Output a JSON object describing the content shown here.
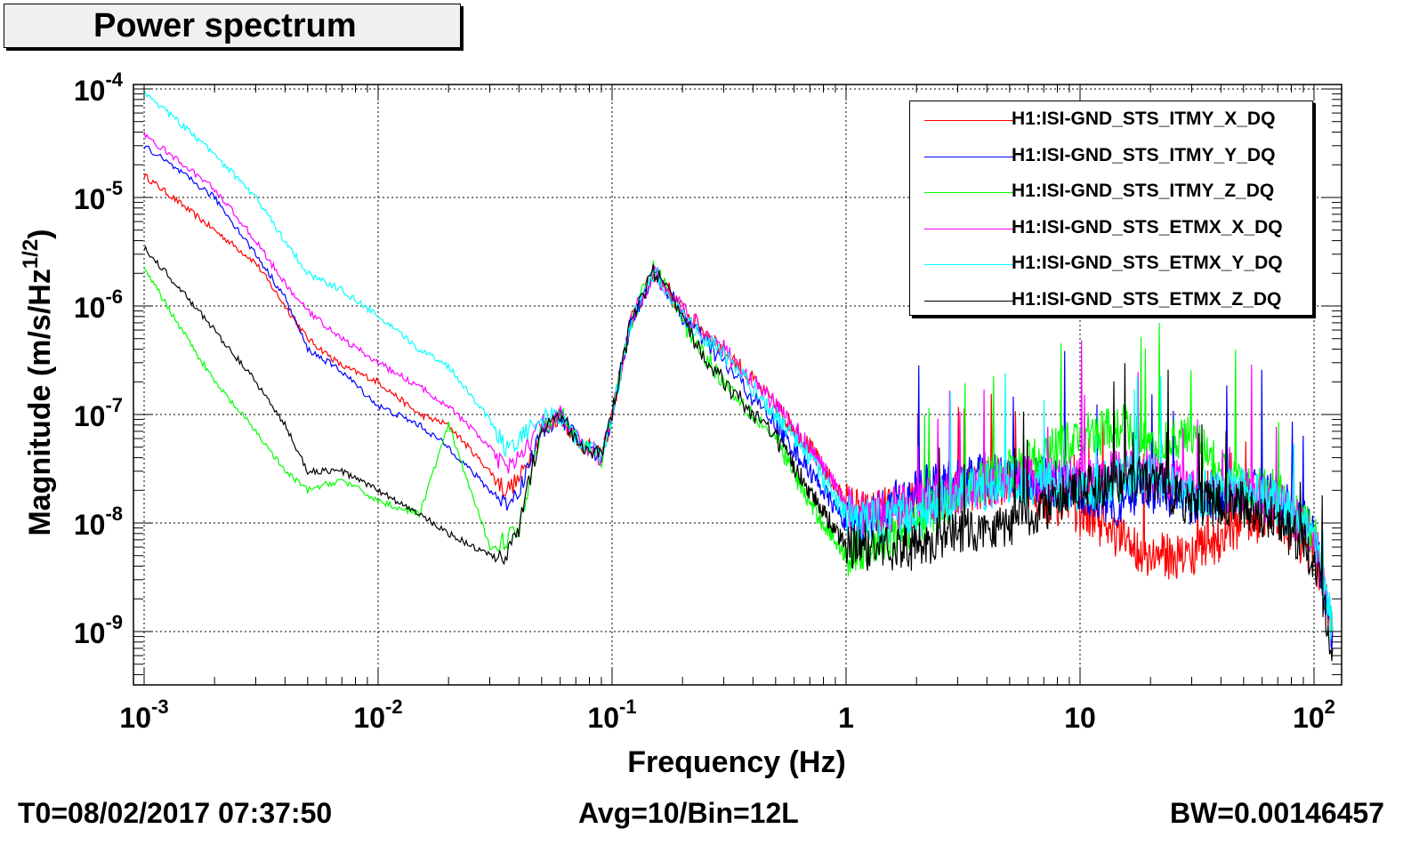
{
  "chart_data": {
    "type": "line",
    "title": "Power spectrum",
    "xlabel": "Frequency (Hz)",
    "ylabel": "Magnitude (m/s/Hz^(1/2))",
    "xscale": "log",
    "yscale": "log",
    "xlim": [
      0.001,
      120
    ],
    "ylim": [
      3e-10,
      0.0001
    ],
    "grid": true,
    "legend_position": "top-right",
    "x_ticks": [
      {
        "base": "10",
        "exp": "-3",
        "value": 0.001
      },
      {
        "base": "10",
        "exp": "-2",
        "value": 0.01
      },
      {
        "base": "10",
        "exp": "-1",
        "value": 0.1
      },
      {
        "base": "1",
        "exp": "",
        "value": 1
      },
      {
        "base": "10",
        "exp": "",
        "value": 10
      },
      {
        "base": "10",
        "exp": "2",
        "value": 100
      }
    ],
    "y_ticks": [
      {
        "base": "10",
        "exp": "-4",
        "value": 0.0001
      },
      {
        "base": "10",
        "exp": "-5",
        "value": 1e-05
      },
      {
        "base": "10",
        "exp": "-6",
        "value": 1e-06
      },
      {
        "base": "10",
        "exp": "-7",
        "value": 1e-07
      },
      {
        "base": "10",
        "exp": "-8",
        "value": 1e-08
      },
      {
        "base": "10",
        "exp": "-9",
        "value": 1e-09
      }
    ],
    "series": [
      {
        "name": "H1:ISI-GND_STS_ITMY_X_DQ",
        "color": "#ff0000",
        "x": [
          0.001,
          0.002,
          0.003,
          0.004,
          0.005,
          0.007,
          0.01,
          0.015,
          0.02,
          0.03,
          0.035,
          0.04,
          0.05,
          0.06,
          0.07,
          0.09,
          0.1,
          0.12,
          0.15,
          0.17,
          0.2,
          0.3,
          0.5,
          0.7,
          1,
          1.2,
          2,
          3,
          5,
          10,
          15,
          20,
          30,
          50,
          70,
          100,
          120
        ],
        "y": [
          1.6e-05,
          5e-06,
          2.5e-06,
          1e-06,
          5e-07,
          2.8e-07,
          2e-07,
          1e-07,
          8e-08,
          3e-08,
          2e-08,
          2.5e-08,
          7e-08,
          1e-07,
          6e-08,
          4e-08,
          1e-07,
          7e-07,
          2e-06,
          1.5e-06,
          9e-07,
          4e-07,
          1.2e-07,
          5e-08,
          1.5e-08,
          1.2e-08,
          1.5e-08,
          2e-08,
          2.5e-08,
          1.2e-08,
          7e-09,
          5e-09,
          5e-09,
          1e-08,
          1.2e-08,
          5e-09,
          1e-09
        ]
      },
      {
        "name": "H1:ISI-GND_STS_ITMY_Y_DQ",
        "color": "#0000ff",
        "x": [
          0.001,
          0.002,
          0.003,
          0.004,
          0.005,
          0.007,
          0.01,
          0.015,
          0.02,
          0.03,
          0.035,
          0.04,
          0.05,
          0.06,
          0.07,
          0.09,
          0.1,
          0.12,
          0.15,
          0.17,
          0.2,
          0.3,
          0.5,
          0.7,
          1,
          1.2,
          2,
          3,
          5,
          10,
          15,
          20,
          30,
          50,
          70,
          100,
          120
        ],
        "y": [
          3e-05,
          1e-05,
          3e-06,
          1.2e-06,
          4e-07,
          2.5e-07,
          1.2e-07,
          8e-08,
          5e-08,
          2e-08,
          1.5e-08,
          2e-08,
          7e-08,
          1e-07,
          6e-08,
          4e-08,
          1e-07,
          7e-07,
          2e-06,
          1.5e-06,
          8e-07,
          3e-07,
          8e-08,
          3e-08,
          1e-08,
          1e-08,
          2e-08,
          2.5e-08,
          3e-08,
          2e-08,
          1.5e-08,
          2e-08,
          1.5e-08,
          2e-08,
          1.8e-08,
          8e-09,
          1e-09
        ]
      },
      {
        "name": "H1:ISI-GND_STS_ITMY_Z_DQ",
        "color": "#00ff00",
        "x": [
          0.001,
          0.002,
          0.003,
          0.004,
          0.005,
          0.007,
          0.01,
          0.015,
          0.02,
          0.03,
          0.035,
          0.04,
          0.05,
          0.06,
          0.07,
          0.09,
          0.1,
          0.12,
          0.15,
          0.17,
          0.2,
          0.3,
          0.5,
          0.7,
          1,
          1.2,
          2,
          3,
          5,
          10,
          15,
          20,
          30,
          50,
          70,
          100,
          120
        ],
        "y": [
          2.2e-06,
          2e-07,
          7e-08,
          3e-08,
          2e-08,
          2.5e-08,
          1.6e-08,
          1.2e-08,
          8e-08,
          6e-09,
          7e-09,
          9e-09,
          8e-08,
          1e-07,
          6e-08,
          4e-08,
          1e-07,
          7e-07,
          2.2e-06,
          1.5e-06,
          7e-07,
          2e-07,
          6e-08,
          1.5e-08,
          5e-09,
          6e-09,
          1e-08,
          2e-08,
          3e-08,
          6e-08,
          8e-08,
          5e-08,
          6e-08,
          2e-08,
          2e-08,
          8e-09,
          1e-09
        ]
      },
      {
        "name": "H1:ISI-GND_STS_ETMX_X_DQ",
        "color": "#ff00ff",
        "x": [
          0.001,
          0.002,
          0.003,
          0.004,
          0.005,
          0.007,
          0.01,
          0.015,
          0.02,
          0.03,
          0.035,
          0.04,
          0.05,
          0.06,
          0.07,
          0.09,
          0.1,
          0.12,
          0.15,
          0.17,
          0.2,
          0.3,
          0.5,
          0.7,
          1,
          1.2,
          2,
          3,
          5,
          10,
          15,
          20,
          30,
          50,
          70,
          100,
          120
        ],
        "y": [
          3.8e-05,
          1.2e-05,
          4e-06,
          1.6e-06,
          9e-07,
          5e-07,
          3e-07,
          1.8e-07,
          1.2e-07,
          5e-08,
          3e-08,
          4e-08,
          8e-08,
          1e-07,
          6e-08,
          4e-08,
          1e-07,
          7e-07,
          2e-06,
          1.5e-06,
          9e-07,
          4e-07,
          1.2e-07,
          5e-08,
          1.5e-08,
          1.2e-08,
          1.5e-08,
          2e-08,
          2.5e-08,
          2.5e-08,
          3e-08,
          3e-08,
          2e-08,
          2e-08,
          1.5e-08,
          8e-09,
          1e-09
        ]
      },
      {
        "name": "H1:ISI-GND_STS_ETMX_Y_DQ",
        "color": "#00ffff",
        "x": [
          0.001,
          0.002,
          0.003,
          0.004,
          0.005,
          0.007,
          0.01,
          0.015,
          0.02,
          0.03,
          0.035,
          0.04,
          0.05,
          0.06,
          0.07,
          0.09,
          0.1,
          0.12,
          0.15,
          0.17,
          0.2,
          0.3,
          0.5,
          0.7,
          1,
          1.2,
          2,
          3,
          5,
          10,
          15,
          20,
          30,
          50,
          70,
          100,
          120
        ],
        "y": [
          9.5e-05,
          2.5e-05,
          1e-05,
          4e-06,
          2e-06,
          1.4e-06,
          8e-07,
          4e-07,
          2.8e-07,
          9e-08,
          5e-08,
          6e-08,
          9e-08,
          1e-07,
          6e-08,
          4e-08,
          1e-07,
          7e-07,
          2e-06,
          1.5e-06,
          8e-07,
          3.5e-07,
          1e-07,
          4e-08,
          1.2e-08,
          1e-08,
          1.2e-08,
          1.8e-08,
          2.5e-08,
          2e-08,
          2.5e-08,
          3e-08,
          1.8e-08,
          2e-08,
          1.5e-08,
          8e-09,
          1e-09
        ]
      },
      {
        "name": "H1:ISI-GND_STS_ETMX_Z_DQ",
        "color": "#000000",
        "x": [
          0.001,
          0.002,
          0.003,
          0.004,
          0.005,
          0.007,
          0.01,
          0.015,
          0.02,
          0.03,
          0.035,
          0.04,
          0.05,
          0.06,
          0.07,
          0.09,
          0.1,
          0.12,
          0.15,
          0.17,
          0.2,
          0.3,
          0.5,
          0.7,
          1,
          1.2,
          2,
          3,
          5,
          10,
          15,
          20,
          30,
          50,
          70,
          100,
          120
        ],
        "y": [
          3.5e-06,
          6e-07,
          2e-07,
          8e-08,
          3e-08,
          3e-08,
          2e-08,
          1.2e-08,
          8e-09,
          5e-09,
          4.5e-09,
          9e-09,
          8e-08,
          1e-07,
          6e-08,
          4e-08,
          1e-07,
          7e-07,
          2e-06,
          1.5e-06,
          7e-07,
          2e-07,
          6e-08,
          2e-08,
          6e-09,
          6e-09,
          6e-09,
          8e-09,
          1e-08,
          2e-08,
          2.5e-08,
          2.5e-08,
          1.5e-08,
          1.5e-08,
          1e-08,
          5e-09,
          7e-10
        ]
      }
    ]
  },
  "footer": {
    "t0": "T0=08/02/2017 07:37:50",
    "avg": "Avg=10/Bin=12L",
    "bw": "BW=0.00146457"
  }
}
